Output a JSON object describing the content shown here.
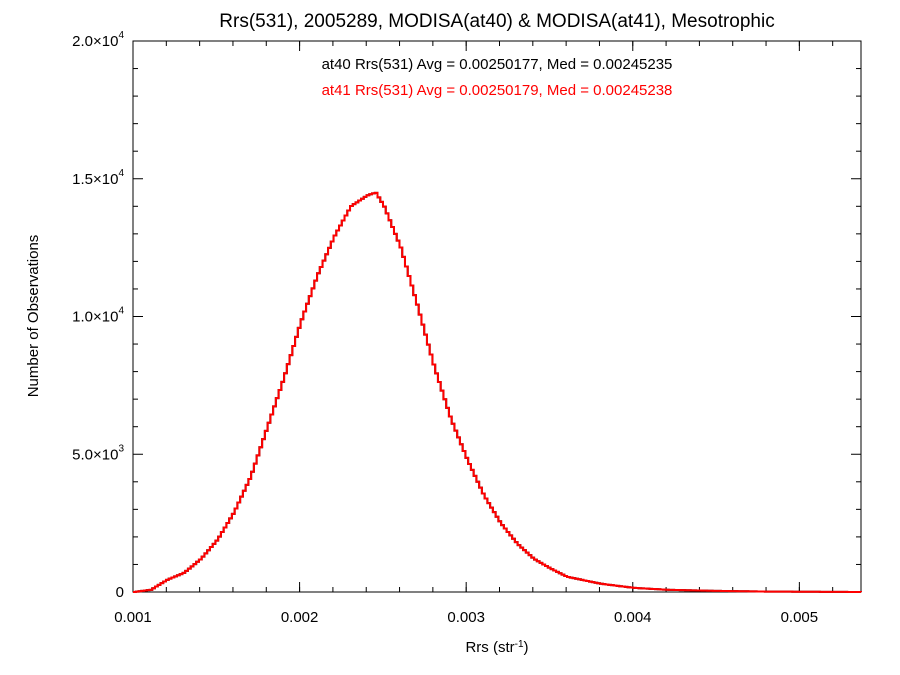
{
  "chart_data": {
    "type": "line",
    "title": "Rrs(531), 2005289, MODISA(at40) & MODISA(at41), Mesotrophic",
    "xlabel": {
      "main": "Rrs (str",
      "sup": "-1",
      "tail": ")"
    },
    "ylabel": "Number of Observations",
    "xlim": [
      0.001,
      0.00537
    ],
    "ylim": [
      0,
      20000
    ],
    "grid": false,
    "x_ticks": [
      {
        "value": 0.001,
        "label": "0.001"
      },
      {
        "value": 0.002,
        "label": "0.002"
      },
      {
        "value": 0.003,
        "label": "0.003"
      },
      {
        "value": 0.004,
        "label": "0.004"
      },
      {
        "value": 0.005,
        "label": "0.005"
      }
    ],
    "y_ticks": [
      {
        "value": 0,
        "mant": "0",
        "exp": ""
      },
      {
        "value": 5000,
        "mant": "5.0×10",
        "exp": "3"
      },
      {
        "value": 10000,
        "mant": "1.0×10",
        "exp": "4"
      },
      {
        "value": 15000,
        "mant": "1.5×10",
        "exp": "4"
      },
      {
        "value": 20000,
        "mant": "2.0×10",
        "exp": "4"
      }
    ],
    "annotations": [
      {
        "text": "at40 Rrs(531) Avg = 0.00250177, Med = 0.00245235",
        "color": "#000000"
      },
      {
        "text": "at41 Rrs(531) Avg = 0.00250179, Med = 0.00245238",
        "color": "#ff0000"
      }
    ],
    "series": [
      {
        "color": "#000000",
        "step": true,
        "x": [
          0.001,
          0.0011,
          0.0012,
          0.0013,
          0.0014,
          0.0015,
          0.0016,
          0.0017,
          0.0018,
          0.0019,
          0.002,
          0.0021,
          0.0022,
          0.0023,
          0.0024,
          0.00245,
          0.0025,
          0.0026,
          0.0027,
          0.0028,
          0.0029,
          0.003,
          0.0031,
          0.0032,
          0.0033,
          0.0034,
          0.0035,
          0.0036,
          0.0038,
          0.004,
          0.0042,
          0.0045,
          0.0048,
          0.005,
          0.00537
        ],
        "y": [
          0,
          80,
          450,
          700,
          1200,
          1900,
          2900,
          4200,
          6000,
          7800,
          9800,
          11500,
          12900,
          14000,
          14400,
          14500,
          14000,
          12500,
          10400,
          8200,
          6300,
          4800,
          3500,
          2500,
          1750,
          1200,
          850,
          550,
          300,
          150,
          80,
          40,
          15,
          10,
          0
        ]
      },
      {
        "color": "#ff0000",
        "step": true,
        "x": [
          0.001,
          0.0011,
          0.0012,
          0.0013,
          0.0014,
          0.0015,
          0.0016,
          0.0017,
          0.0018,
          0.0019,
          0.002,
          0.0021,
          0.0022,
          0.0023,
          0.0024,
          0.00245,
          0.0025,
          0.0026,
          0.0027,
          0.0028,
          0.0029,
          0.003,
          0.0031,
          0.0032,
          0.0033,
          0.0034,
          0.0035,
          0.0036,
          0.0038,
          0.004,
          0.0042,
          0.0045,
          0.0048,
          0.005,
          0.00537
        ],
        "y": [
          0,
          80,
          450,
          700,
          1200,
          1900,
          2900,
          4200,
          6000,
          7800,
          9800,
          11500,
          12900,
          14000,
          14400,
          14500,
          14000,
          12500,
          10400,
          8200,
          6300,
          4800,
          3500,
          2500,
          1750,
          1200,
          850,
          550,
          300,
          150,
          80,
          40,
          15,
          10,
          0
        ]
      }
    ]
  }
}
